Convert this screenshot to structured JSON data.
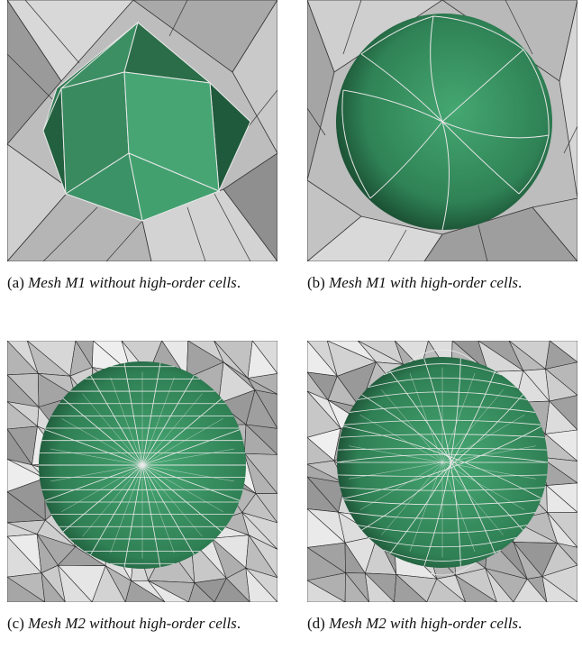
{
  "figures": [
    {
      "id": "a",
      "label": "(a)",
      "text": "Mesh M1 without high-order cells",
      "terminator": "."
    },
    {
      "id": "b",
      "label": "(b)",
      "text": "Mesh M1 with high-order cells",
      "terminator": "."
    },
    {
      "id": "c",
      "label": "(c)",
      "text": "Mesh M2 without high-order cells",
      "terminator": "."
    },
    {
      "id": "d",
      "label": "(d)",
      "text": "Mesh M2 with high-order cells",
      "terminator": "."
    }
  ],
  "colors": {
    "sphere": "#3f9b6c",
    "sphere_dark": "#1f5a3c",
    "background_mesh": "#c4c4c4"
  }
}
